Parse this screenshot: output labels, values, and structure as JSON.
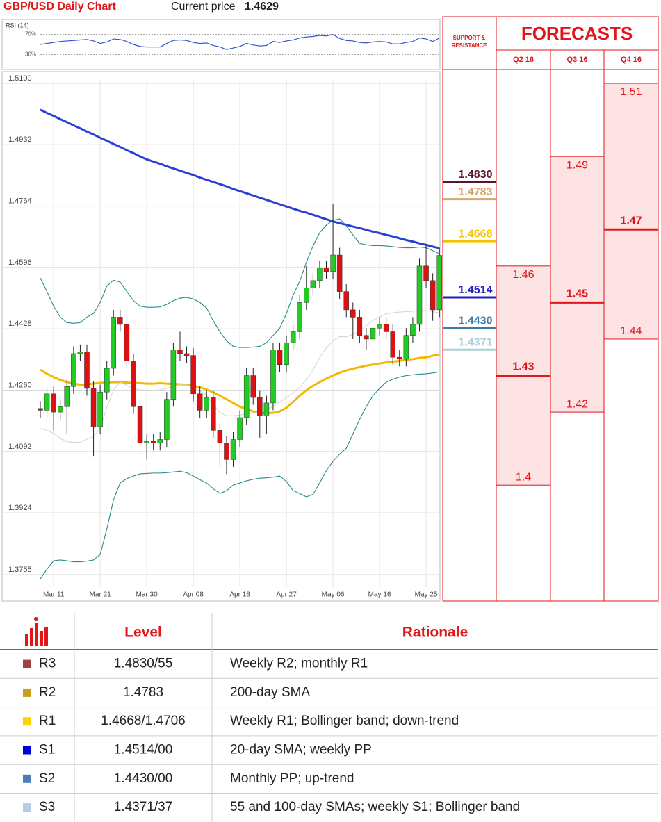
{
  "header": {
    "title": "GBP/USD Daily Chart",
    "price_label": "Current price",
    "price": "1.4629"
  },
  "chart_data": [
    {
      "type": "line",
      "title": "RSI (14)",
      "color": "#3355cc",
      "ylim": [
        0,
        100
      ],
      "yticks": [
        {
          "value": 30,
          "label": "30%"
        },
        {
          "value": 70,
          "label": "70%"
        }
      ],
      "values": [
        50,
        52,
        54,
        56,
        57,
        58,
        59,
        60,
        57,
        52,
        55,
        61,
        60,
        56,
        50,
        46,
        45,
        45,
        45,
        52,
        58,
        59,
        58,
        54,
        52,
        53,
        48,
        45,
        40,
        43,
        46,
        52,
        49,
        47,
        48,
        56,
        54,
        57,
        59,
        63,
        65,
        66,
        68,
        67,
        70,
        62,
        58,
        57,
        54,
        53,
        55,
        56,
        55,
        51,
        51,
        54,
        56,
        63,
        61,
        56,
        63
      ]
    },
    {
      "type": "candlestick",
      "up_color": "#22cc22",
      "down_color": "#dd1111",
      "grid": true,
      "ylim": [
        1.3755,
        1.51
      ],
      "yticks": [
        {
          "value": 1.51,
          "label": "1.5100"
        },
        1.4932,
        1.4764,
        1.4596,
        1.4428,
        {
          "value": 1.426,
          "label": "1.4260"
        },
        1.4092,
        1.3924,
        1.3755
      ],
      "categories": [
        null,
        null,
        "Mar 11",
        null,
        null,
        null,
        null,
        null,
        null,
        "Mar 21",
        null,
        null,
        null,
        null,
        null,
        null,
        "Mar 30",
        null,
        null,
        null,
        null,
        null,
        null,
        "Apr 08",
        null,
        null,
        null,
        null,
        null,
        null,
        "Apr 18",
        null,
        null,
        null,
        null,
        null,
        null,
        "Apr 27",
        null,
        null,
        null,
        null,
        null,
        null,
        "May 06",
        null,
        null,
        null,
        null,
        null,
        null,
        "May 16",
        null,
        null,
        null,
        null,
        null,
        null,
        "May 25",
        null,
        null
      ],
      "open": [
        1.421,
        1.4205,
        1.425,
        1.42,
        1.4215,
        1.427,
        1.436,
        1.4365,
        1.4265,
        1.416,
        1.4255,
        1.432,
        1.446,
        1.444,
        1.434,
        1.4215,
        1.4115,
        1.412,
        1.4115,
        1.4125,
        1.4235,
        1.437,
        1.436,
        1.4355,
        1.425,
        1.4205,
        1.424,
        1.415,
        1.4115,
        1.407,
        1.4125,
        1.4185,
        1.43,
        1.424,
        1.419,
        1.4225,
        1.437,
        1.433,
        1.439,
        1.442,
        1.45,
        1.454,
        1.456,
        1.4595,
        1.4585,
        1.463,
        1.453,
        1.448,
        1.446,
        1.441,
        1.44,
        1.443,
        1.444,
        1.442,
        1.435,
        1.4345,
        1.441,
        1.444,
        1.46,
        1.456,
        1.448
      ],
      "high": [
        1.423,
        1.427,
        1.427,
        1.4235,
        1.429,
        1.438,
        1.4385,
        1.4385,
        1.4285,
        1.4275,
        1.434,
        1.448,
        1.448,
        1.446,
        1.436,
        1.4235,
        1.414,
        1.414,
        1.4145,
        1.4255,
        1.439,
        1.442,
        1.438,
        1.4375,
        1.427,
        1.426,
        1.426,
        1.417,
        1.4135,
        1.4145,
        1.4205,
        1.432,
        1.432,
        1.426,
        1.4245,
        1.439,
        1.439,
        1.441,
        1.444,
        1.452,
        1.46,
        1.458,
        1.4615,
        1.4615,
        1.477,
        1.465,
        1.455,
        1.45,
        1.448,
        1.443,
        1.445,
        1.446,
        1.446,
        1.444,
        1.437,
        1.443,
        1.446,
        1.462,
        1.466,
        1.458,
        1.465
      ],
      "low": [
        1.4185,
        1.4185,
        1.415,
        1.418,
        1.414,
        1.425,
        1.434,
        1.4245,
        1.408,
        1.414,
        1.4235,
        1.43,
        1.442,
        1.432,
        1.4195,
        1.4085,
        1.407,
        1.4095,
        1.4095,
        1.4105,
        1.4215,
        1.434,
        1.4335,
        1.423,
        1.4185,
        1.4185,
        1.413,
        1.405,
        1.403,
        1.405,
        1.4105,
        1.4165,
        1.422,
        1.413,
        1.414,
        1.4205,
        1.431,
        1.431,
        1.437,
        1.44,
        1.448,
        1.452,
        1.454,
        1.4565,
        1.4565,
        1.451,
        1.446,
        1.44,
        1.439,
        1.437,
        1.438,
        1.441,
        1.44,
        1.433,
        1.4325,
        1.4325,
        1.439,
        1.442,
        1.454,
        1.445,
        1.446
      ],
      "close": [
        1.4205,
        1.425,
        1.42,
        1.4215,
        1.427,
        1.436,
        1.4365,
        1.4265,
        1.416,
        1.4255,
        1.432,
        1.446,
        1.444,
        1.434,
        1.4215,
        1.4115,
        1.412,
        1.4115,
        1.4125,
        1.4235,
        1.437,
        1.436,
        1.4355,
        1.425,
        1.4205,
        1.424,
        1.415,
        1.4115,
        1.407,
        1.4125,
        1.4185,
        1.43,
        1.424,
        1.419,
        1.4225,
        1.437,
        1.433,
        1.439,
        1.442,
        1.45,
        1.454,
        1.456,
        1.4595,
        1.4585,
        1.463,
        1.453,
        1.448,
        1.446,
        1.441,
        1.44,
        1.443,
        1.444,
        1.442,
        1.435,
        1.4345,
        1.441,
        1.444,
        1.46,
        1.456,
        1.448,
        1.4629
      ],
      "overlays": [
        {
          "color": "#2a3fd4",
          "thick": true,
          "values": [
            1.5028,
            1.5019,
            1.5011,
            1.5002,
            1.4994,
            1.4985,
            1.4977,
            1.4968,
            1.496,
            1.4951,
            1.4943,
            1.4934,
            1.4926,
            1.4917,
            1.4909,
            1.49,
            1.4892,
            1.4886,
            1.488,
            1.4873,
            1.4867,
            1.4861,
            1.4855,
            1.4849,
            1.4842,
            1.4836,
            1.483,
            1.4824,
            1.4818,
            1.4811,
            1.4805,
            1.4799,
            1.4793,
            1.4787,
            1.4781,
            1.4775,
            1.4769,
            1.4763,
            1.4757,
            1.4751,
            1.4746,
            1.474,
            1.4734,
            1.4728,
            1.4722,
            1.4717,
            1.4713,
            1.4708,
            1.4704,
            1.4699,
            1.4694,
            1.469,
            1.4685,
            1.4681,
            1.4676,
            1.4671,
            1.4667,
            1.4662,
            1.4658,
            1.4653,
            1.4649
          ]
        },
        {
          "color": "#f5b800",
          "thick": true,
          "values": [
            1.4316,
            1.4305,
            1.4296,
            1.4288,
            1.4282,
            1.4278,
            1.4275,
            1.4276,
            1.4278,
            1.428,
            1.4281,
            1.4282,
            1.4282,
            1.4281,
            1.428,
            1.4279,
            1.4278,
            1.4278,
            1.4279,
            1.4278,
            1.4277,
            1.4276,
            1.4275,
            1.4272,
            1.4268,
            1.4262,
            1.4254,
            1.4245,
            1.4235,
            1.4225,
            1.4215,
            1.4208,
            1.4202,
            1.4198,
            1.4197,
            1.4198,
            1.4202,
            1.4212,
            1.4228,
            1.4245,
            1.426,
            1.4272,
            1.4282,
            1.4292,
            1.43,
            1.4308,
            1.4314,
            1.4319,
            1.4323,
            1.4327,
            1.433,
            1.4333,
            1.4336,
            1.4338,
            1.434,
            1.4343,
            1.4345,
            1.4348,
            1.435,
            1.4354,
            1.4358
          ]
        },
        {
          "color": "#2a8a8a",
          "thick": false,
          "values": [
            1.4567,
            1.453,
            1.449,
            1.446,
            1.4445,
            1.4443,
            1.4445,
            1.446,
            1.447,
            1.45,
            1.4545,
            1.4561,
            1.4556,
            1.453,
            1.4505,
            1.449,
            1.4487,
            1.4487,
            1.4488,
            1.4495,
            1.4505,
            1.4512,
            1.4514,
            1.451,
            1.45,
            1.4485,
            1.445,
            1.442,
            1.4395,
            1.438,
            1.4377,
            1.4377,
            1.4378,
            1.438,
            1.439,
            1.441,
            1.443,
            1.447,
            1.452,
            1.4558,
            1.461,
            1.4655,
            1.4691,
            1.4712,
            1.4725,
            1.4729,
            1.471,
            1.4685,
            1.4662,
            1.4658,
            1.4656,
            1.4656,
            1.4655,
            1.4653,
            1.4651,
            1.465,
            1.465,
            1.4652,
            1.465,
            1.4642,
            1.4634
          ]
        },
        {
          "color": "#2a8a8a",
          "thick": false,
          "values": [
            1.3743,
            1.377,
            1.3793,
            1.3795,
            1.3793,
            1.379,
            1.379,
            1.3792,
            1.3795,
            1.381,
            1.388,
            1.396,
            1.4006,
            1.4018,
            1.4025,
            1.4031,
            1.4032,
            1.4033,
            1.4033,
            1.4034,
            1.4036,
            1.4038,
            1.4034,
            1.4025,
            1.4015,
            1.4006,
            1.399,
            1.3977,
            1.3985,
            1.4,
            1.4006,
            1.4012,
            1.4016,
            1.4019,
            1.402,
            1.4022,
            1.4025,
            1.401,
            1.3985,
            1.3977,
            1.3968,
            1.3975,
            1.4006,
            1.404,
            1.4065,
            1.4085,
            1.4101,
            1.414,
            1.418,
            1.4215,
            1.4245,
            1.4265,
            1.4282,
            1.429,
            1.4296,
            1.43,
            1.4302,
            1.4304,
            1.4305,
            1.4307,
            1.431
          ]
        },
        {
          "color": "#d6d6d6",
          "thick": false,
          "values": [
            1.4155,
            1.415,
            1.4142,
            1.4128,
            1.4119,
            1.4117,
            1.4118,
            1.4126,
            1.4133,
            1.4155,
            1.4213,
            1.4261,
            1.4281,
            1.4274,
            1.4265,
            1.4261,
            1.426,
            1.426,
            1.4261,
            1.4265,
            1.4271,
            1.4275,
            1.4274,
            1.4268,
            1.4258,
            1.4246,
            1.422,
            1.4199,
            1.419,
            1.419,
            1.4192,
            1.4195,
            1.4197,
            1.42,
            1.4205,
            1.4216,
            1.4228,
            1.424,
            1.4253,
            1.4268,
            1.4289,
            1.4315,
            1.4349,
            1.4376,
            1.4395,
            1.4407,
            1.4406,
            1.4413,
            1.4421,
            1.4437,
            1.4451,
            1.4461,
            1.4469,
            1.4472,
            1.4474,
            1.4475,
            1.4476,
            1.4478,
            1.4478,
            1.4475,
            1.4472
          ]
        }
      ],
      "levels": {
        "title": [
          "SUPPORT &",
          "RESISTANCE"
        ],
        "values": [
          1.483,
          1.4783,
          1.4668,
          1.4514,
          1.443,
          1.4371
        ],
        "value_labels": [
          "1.4830",
          "1.4783",
          "1.4668",
          "1.4514",
          "1.4430",
          "1.4371"
        ],
        "colors": [
          "#5a1530",
          "#d6a66a",
          "#f5c400",
          "#1f1fbf",
          "#3d7ba8",
          "#a9cfd6"
        ]
      }
    },
    {
      "type": "forecast",
      "title": "FORECASTS",
      "color": "#e0161b",
      "fill": "#fde3e3",
      "ylim": [
        1.3755,
        1.51
      ],
      "categories": [
        "Q2 16",
        "Q3 16",
        "Q4 16"
      ],
      "high": [
        1.46,
        1.49,
        1.51
      ],
      "median": [
        1.43,
        1.45,
        1.47
      ],
      "low": [
        1.4,
        1.42,
        1.44
      ]
    }
  ],
  "table": {
    "columns": [
      "Level",
      "Rationale"
    ],
    "rows": [
      {
        "name": "R3",
        "color": "#a04040",
        "level": "1.4830/55",
        "rationale": "Weekly R2; monthly R1"
      },
      {
        "name": "R2",
        "color": "#c8a020",
        "level": "1.4783",
        "rationale": "200-day SMA"
      },
      {
        "name": "R1",
        "color": "#ffd200",
        "level": "1.4668/1.4706",
        "rationale": "Weekly R1; Bollinger band; down-trend"
      },
      {
        "name": "S1",
        "color": "#0000dd",
        "level": "1.4514/00",
        "rationale": "20-day SMA; weekly PP"
      },
      {
        "name": "S2",
        "color": "#4a7fb5",
        "level": "1.4430/00",
        "rationale": "Monthly PP; up-trend"
      },
      {
        "name": "S3",
        "color": "#b8cce4",
        "level": "1.4371/37",
        "rationale": "55 and 100-day SMAs; weekly S1; Bollinger band"
      }
    ]
  }
}
